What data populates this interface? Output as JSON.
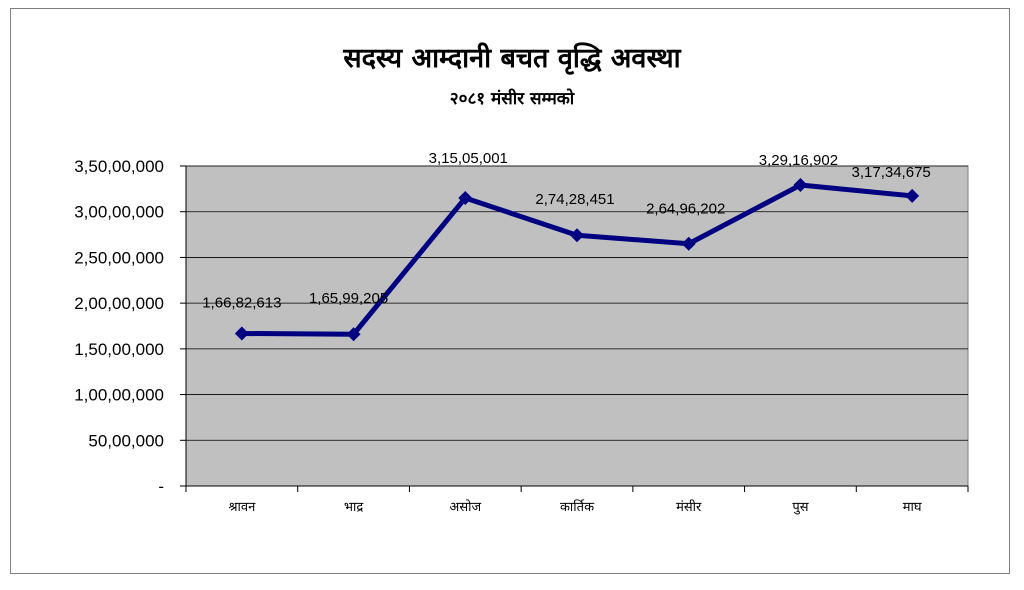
{
  "chart_data": {
    "type": "line",
    "title": "सदस्य आम्दानी बचत वृद्धि अवस्था",
    "subtitle": "२०८१ मंसीर सम्मको",
    "categories": [
      "श्रावन",
      "भाद्र",
      "असोज",
      "कार्तिक",
      "मंसीर",
      "पुस",
      "माघ"
    ],
    "series": [
      {
        "values": [
          16682613,
          16599205,
          31505001,
          27428451,
          26496202,
          32916902,
          31734675
        ],
        "data_labels": [
          "1,66,82,613",
          "1,65,99,205",
          "3,15,05,001",
          "2,74,28,451",
          "2,64,96,202",
          "3,29,16,902",
          "3,17,34,675"
        ]
      }
    ],
    "ylim": [
      0,
      35000000
    ],
    "yticks": [
      0,
      5000000,
      10000000,
      15000000,
      20000000,
      25000000,
      30000000,
      35000000
    ],
    "ytick_labels": [
      "-",
      "50,00,000",
      "1,00,00,000",
      "1,50,00,000",
      "2,00,00,000",
      "2,50,00,000",
      "3,00,00,000",
      "3,50,00,000"
    ],
    "grid": true,
    "legend": "none",
    "colors": {
      "line": "#000080",
      "plot_bg": "#c0c0c0",
      "grid": "#000000"
    }
  }
}
